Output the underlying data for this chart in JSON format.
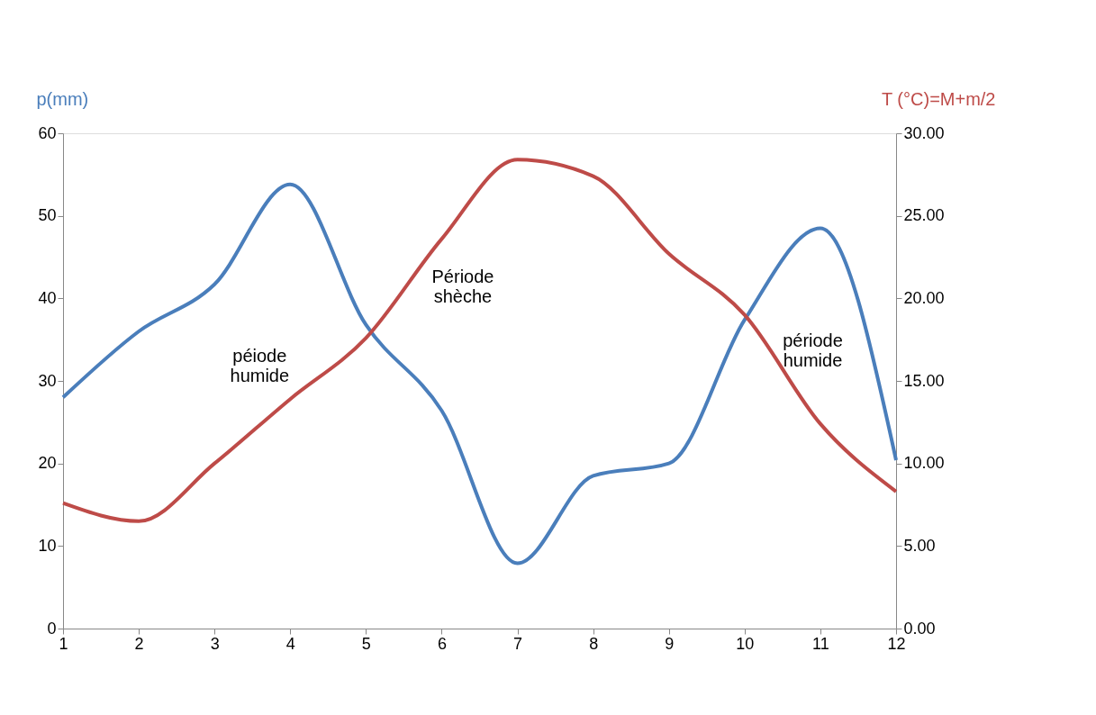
{
  "chart_data": {
    "type": "line",
    "xlabel": null,
    "ylabel": "p(mm)",
    "y2label": "T (°C)=M+m/2",
    "x": [
      1,
      2,
      3,
      4,
      5,
      6,
      7,
      8,
      9,
      10,
      11,
      12
    ],
    "xlim": [
      1,
      12
    ],
    "xticks": [
      1,
      2,
      3,
      4,
      5,
      6,
      7,
      8,
      9,
      10,
      11,
      12
    ],
    "ylim": [
      0,
      60
    ],
    "yticks": [
      0,
      10,
      20,
      30,
      40,
      50,
      60
    ],
    "y2lim": [
      0,
      30
    ],
    "y2ticks": [
      {
        "value": 0,
        "label": "0.00"
      },
      {
        "value": 5,
        "label": "5.00"
      },
      {
        "value": 10,
        "label": "10.00"
      },
      {
        "value": 15,
        "label": "15.00"
      },
      {
        "value": 20,
        "label": "20.00"
      },
      {
        "value": 25,
        "label": "25.00"
      },
      {
        "value": 30,
        "label": "30.00"
      }
    ],
    "series": [
      {
        "color": "#4a7ebb",
        "axis": "y",
        "values": [
          28,
          36,
          41.7,
          53.8,
          36.8,
          26.4,
          7.9,
          18.5,
          20,
          37.4,
          48.5,
          20.4
        ]
      },
      {
        "color": "#be4b48",
        "axis": "y2",
        "values": [
          7.6,
          6.5,
          10,
          13.9,
          17.6,
          23.6,
          28.4,
          27.4,
          22.7,
          19,
          12.4,
          8.3
        ]
      }
    ],
    "annotations": [
      "péiode\nhumide",
      "Période\nshèche",
      "période\nhumide"
    ],
    "grid": false,
    "marker": "none",
    "line_style": "solid"
  }
}
